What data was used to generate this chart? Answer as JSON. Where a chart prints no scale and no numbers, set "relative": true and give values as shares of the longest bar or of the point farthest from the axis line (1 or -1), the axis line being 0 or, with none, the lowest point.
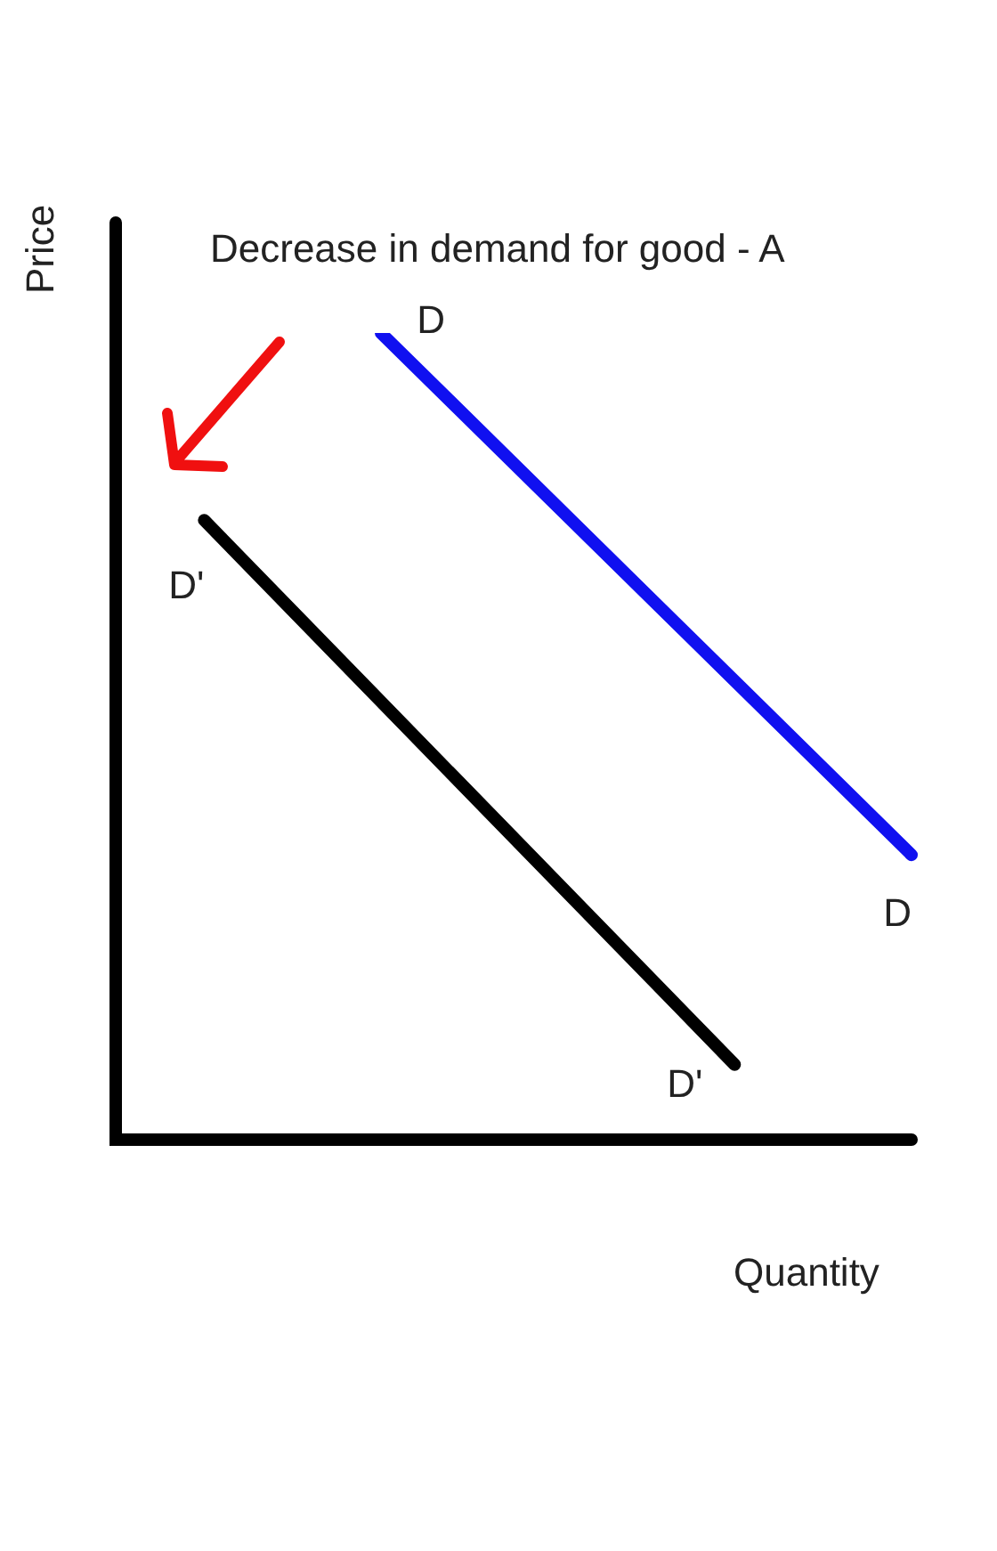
{
  "chart_data": {
    "type": "line",
    "title": "Decrease in demand for good - A",
    "xlabel": "Quantity",
    "ylabel": "Price",
    "relative": true,
    "marker": "none",
    "line_style": "solid",
    "categories": [
      null,
      null,
      null,
      null,
      null,
      null,
      null,
      null,
      null,
      null
    ],
    "series": [
      {
        "name": "D",
        "color": "#1010f0",
        "values": [
          null,
          null,
          null,
          1,
          null,
          null,
          null,
          null,
          null,
          0.353
        ]
      },
      {
        "name": "D'",
        "color": "#000000",
        "values": [
          null,
          0.768,
          null,
          null,
          null,
          null,
          null,
          0.093,
          null,
          null
        ]
      }
    ]
  }
}
